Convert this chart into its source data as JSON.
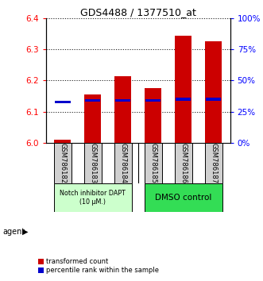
{
  "title": "GDS4488 / 1377510_at",
  "samples": [
    "GSM786182",
    "GSM786183",
    "GSM786184",
    "GSM786185",
    "GSM786186",
    "GSM786187"
  ],
  "bar_values": [
    6.01,
    6.155,
    6.215,
    6.175,
    6.345,
    6.325
  ],
  "bar_base": 6.0,
  "percentile_values": [
    6.13,
    6.135,
    6.135,
    6.135,
    6.14,
    6.14
  ],
  "show_pct_bar1": false,
  "ylim": [
    6.0,
    6.4
  ],
  "yticks_left": [
    6.0,
    6.1,
    6.2,
    6.3,
    6.4
  ],
  "yticks_right": [
    0,
    25,
    50,
    75,
    100
  ],
  "bar_color": "#cc0000",
  "percentile_color": "#0000cc",
  "background_color": "#ffffff",
  "group1_label": "Notch inhibitor DAPT\n(10 μM.)",
  "group2_label": "DMSO control",
  "group1_bg": "#ccffcc",
  "group2_bg": "#33dd55",
  "group1_indices": [
    0,
    1,
    2
  ],
  "group2_indices": [
    3,
    4,
    5
  ],
  "legend_transformed": "transformed count",
  "legend_percentile": "percentile rank within the sample",
  "agent_label": "agent",
  "bar_width": 0.55,
  "sample_box_color": "#d0d0d0",
  "grid_color": "#000000",
  "spine_color": "#000000"
}
